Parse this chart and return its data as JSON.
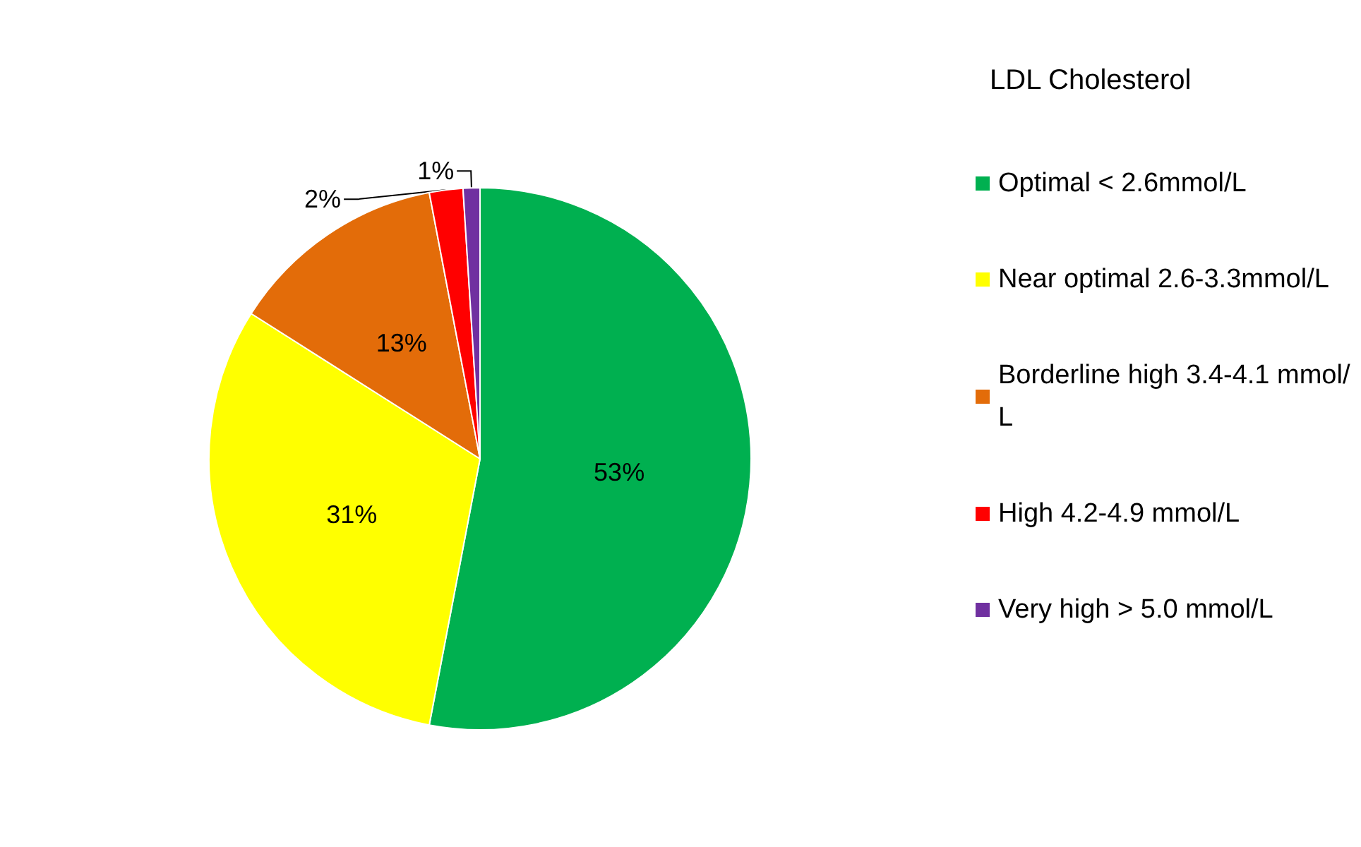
{
  "chart_data": {
    "type": "pie",
    "legend_title": "LDL Cholesterol",
    "legend": "right",
    "categories": [
      "Optimal < 2.6mmol/L",
      "Near optimal 2.6-3.3mmol/L",
      "Borderline high 3.4-4.1 mmol/L",
      "High 4.2-4.9 mmol/L",
      "Very high > 5.0 mmol/L"
    ],
    "values": [
      53,
      31,
      13,
      2,
      1
    ],
    "colors": [
      "#00b050",
      "#ffff00",
      "#e36c09",
      "#ff0000",
      "#7030a0"
    ],
    "value_labels": [
      "53%",
      "31%",
      "13%",
      "2%",
      "1%"
    ]
  }
}
